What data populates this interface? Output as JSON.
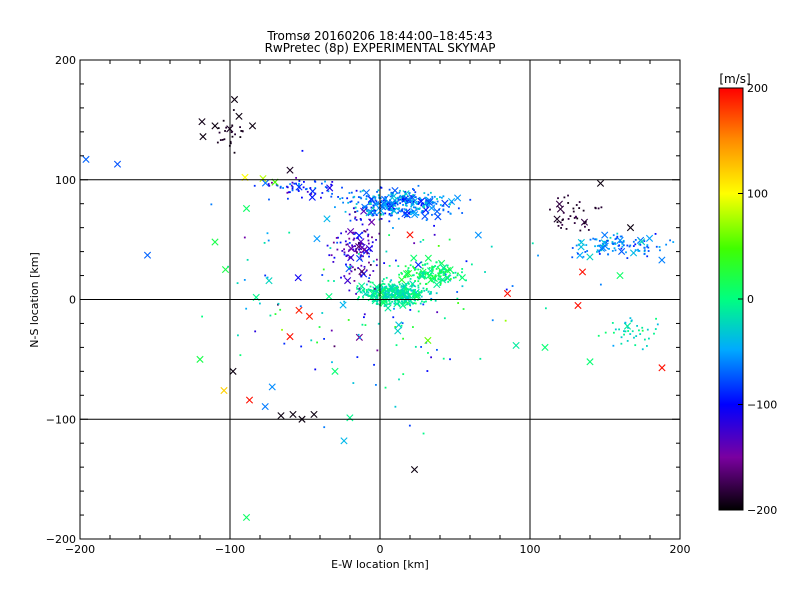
{
  "chart_data": {
    "type": "scatter",
    "title_line1": "Tromsø 20160206 18:44:00–18:45:43",
    "title_line2": "RwPretec (8p) EXPERIMENTAL SKYMAP",
    "xlabel": "E-W location [km]",
    "ylabel": "N-S location [km]",
    "xlim": [
      -200,
      200
    ],
    "ylim": [
      -200,
      200
    ],
    "xticks": [
      -200,
      -100,
      0,
      100,
      200
    ],
    "yticks": [
      -200,
      -100,
      0,
      100,
      200
    ],
    "x_tick_labels": [
      "−200",
      "−100",
      "0",
      "100",
      "200"
    ],
    "y_tick_labels": [
      "−200",
      "−100",
      "0",
      "100",
      "200"
    ],
    "grid": true,
    "colorbar": {
      "label": "[m/s]",
      "range": [
        -200,
        200
      ],
      "ticks": [
        200,
        100,
        0,
        -100,
        -200
      ],
      "tick_labels": [
        "200",
        "100",
        "0",
        "−100",
        "−200"
      ]
    },
    "markers": {
      "small": "dot",
      "large": "x"
    },
    "clusters": [
      {
        "name": "central-core",
        "cx": 10,
        "cy": 5,
        "sx": 18,
        "sy": 8,
        "n": 420,
        "v": -10,
        "vs": 22
      },
      {
        "name": "central-streak",
        "cx": 35,
        "cy": 22,
        "sx": 18,
        "sy": 8,
        "n": 140,
        "v": 5,
        "vs": 22
      },
      {
        "name": "upper-band",
        "cx": 15,
        "cy": 80,
        "sx": 30,
        "sy": 10,
        "n": 340,
        "v": -60,
        "vs": 35
      },
      {
        "name": "upper-left-band",
        "cx": -50,
        "cy": 92,
        "sx": 25,
        "sy": 8,
        "n": 60,
        "v": -90,
        "vs": 40
      },
      {
        "name": "mid-stripe",
        "cx": -15,
        "cy": 40,
        "sx": 12,
        "sy": 25,
        "n": 120,
        "v": -130,
        "vs": 40
      },
      {
        "name": "right-band",
        "cx": 160,
        "cy": 45,
        "sx": 25,
        "sy": 8,
        "n": 110,
        "v": -60,
        "vs": 30
      },
      {
        "name": "right-dark",
        "cx": 130,
        "cy": 70,
        "sx": 15,
        "sy": 12,
        "n": 40,
        "v": -185,
        "vs": 10
      },
      {
        "name": "right-lower",
        "cx": 170,
        "cy": -25,
        "sx": 18,
        "sy": 12,
        "n": 40,
        "v": -20,
        "vs": 25
      },
      {
        "name": "upper-left-dark",
        "cx": -100,
        "cy": 140,
        "sx": 10,
        "sy": 14,
        "n": 25,
        "v": -190,
        "vs": 5
      },
      {
        "name": "scatter-field",
        "cx": 0,
        "cy": 0,
        "sx": 90,
        "sy": 70,
        "n": 160,
        "v": -40,
        "vs": 80
      }
    ],
    "points": [
      {
        "x": -97,
        "y": 167,
        "v": -195,
        "m": "x"
      },
      {
        "x": -110,
        "y": 145,
        "v": -195,
        "m": "x"
      },
      {
        "x": -118,
        "y": 136,
        "v": -195,
        "m": "x"
      },
      {
        "x": -94,
        "y": 153,
        "v": -195,
        "m": "x"
      },
      {
        "x": -85,
        "y": 145,
        "v": -195,
        "m": "x"
      },
      {
        "x": -60,
        "y": 108,
        "v": -190,
        "m": "x"
      },
      {
        "x": -98,
        "y": -60,
        "v": -195,
        "m": "x"
      },
      {
        "x": -66,
        "y": -97,
        "v": -195,
        "m": "x"
      },
      {
        "x": -58,
        "y": -96,
        "v": -195,
        "m": "x"
      },
      {
        "x": -52,
        "y": -100,
        "v": -195,
        "m": "x"
      },
      {
        "x": -44,
        "y": -96,
        "v": -195,
        "m": "x"
      },
      {
        "x": 23,
        "y": -142,
        "v": -195,
        "m": "x"
      },
      {
        "x": 147,
        "y": 97,
        "v": -195,
        "m": "x"
      },
      {
        "x": 167,
        "y": 60,
        "v": -195,
        "m": "x"
      },
      {
        "x": -175,
        "y": 113,
        "v": -75,
        "m": "x"
      },
      {
        "x": -196,
        "y": 117,
        "v": -70,
        "m": "x"
      },
      {
        "x": -155,
        "y": 37,
        "v": -70,
        "m": "x"
      },
      {
        "x": -24,
        "y": -118,
        "v": -40,
        "m": "x"
      },
      {
        "x": -89,
        "y": -182,
        "v": 10,
        "m": "x"
      },
      {
        "x": -89,
        "y": 76,
        "v": 10,
        "m": "x"
      },
      {
        "x": -104,
        "y": -76,
        "v": 120,
        "m": "x"
      },
      {
        "x": -87,
        "y": -84,
        "v": 195,
        "m": "x"
      },
      {
        "x": -60,
        "y": -31,
        "v": 195,
        "m": "x"
      },
      {
        "x": -47,
        "y": -14,
        "v": 190,
        "m": "x"
      },
      {
        "x": -54,
        "y": -9,
        "v": 190,
        "m": "x"
      },
      {
        "x": 20,
        "y": 54,
        "v": 195,
        "m": "x"
      },
      {
        "x": 85,
        "y": 5,
        "v": 195,
        "m": "x"
      },
      {
        "x": 135,
        "y": 23,
        "v": 195,
        "m": "x"
      },
      {
        "x": 132,
        "y": -5,
        "v": 195,
        "m": "x"
      },
      {
        "x": 188,
        "y": -57,
        "v": 195,
        "m": "x"
      },
      {
        "x": -90,
        "y": 102,
        "v": 100,
        "m": "x"
      },
      {
        "x": -78,
        "y": 101,
        "v": 80,
        "m": "x"
      },
      {
        "x": -70,
        "y": 98,
        "v": 50,
        "m": "x"
      },
      {
        "x": -103,
        "y": 25,
        "v": 20,
        "m": "x"
      },
      {
        "x": -110,
        "y": 48,
        "v": 20,
        "m": "x"
      },
      {
        "x": -120,
        "y": -50,
        "v": 20,
        "m": "x"
      },
      {
        "x": -30,
        "y": -60,
        "v": 5,
        "m": "x"
      },
      {
        "x": 140,
        "y": -52,
        "v": 5,
        "m": "x"
      },
      {
        "x": 110,
        "y": -40,
        "v": 5,
        "m": "x"
      },
      {
        "x": 160,
        "y": 20,
        "v": 10,
        "m": "x"
      }
    ]
  }
}
